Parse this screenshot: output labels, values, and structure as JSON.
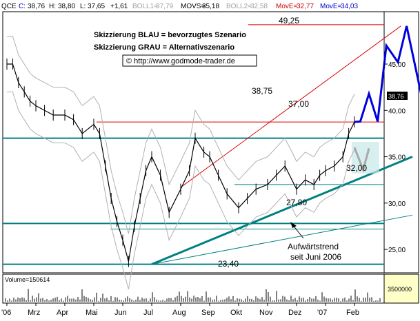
{
  "header": {
    "symbol": "QCE",
    "c": {
      "label": "C:",
      "value": "38,76"
    },
    "h": {
      "label": "H:",
      "value": "38,80"
    },
    "l": {
      "label": "L:",
      "value": "37,65"
    },
    "chg": "+1,61",
    "boll1": {
      "label": "BOLL1=",
      "value": "37,79"
    },
    "movs": {
      "label": "MOVS=",
      "value": "35,18"
    },
    "boll2": {
      "label": "BOLL2=",
      "value": "32,58"
    },
    "movez": {
      "label": "MovE=",
      "value": "32,77"
    },
    "movev": {
      "label": "MovE=",
      "value": "34,03"
    }
  },
  "legend": {
    "line1": "Skizzierung BLAU = bevorzugtes Szenario",
    "line2": "Skizzierung GRAU = Alternativszenario",
    "line3": "© http://www.godmode-trader.de"
  },
  "annotations": {
    "l4925": "49,25",
    "l3875": "38,75",
    "l3700": "37,00",
    "l3200": "32,00",
    "l2780": "27,80",
    "l2340": "23,40",
    "trend1": "Aufwärtstrend",
    "trend2": "seit Juni 2006"
  },
  "price_tag": "38,76",
  "volume_label": "Volume=150614",
  "colors": {
    "price": "#000000",
    "support": "#008080",
    "resistance": "#dd0000",
    "blue": "#0000dd",
    "gray": "#a9a9a9",
    "boll": "#b0b0b0",
    "volume_axis": "#ffffc8"
  },
  "chart_data": {
    "type": "line",
    "title": "",
    "xlabel": "",
    "ylabel": "",
    "x_tick_labels": [
      "'06",
      "Mrz",
      "Apr",
      "Mai",
      "Jun",
      "Jul",
      "Aug",
      "Sep",
      "Okt",
      "Nov",
      "Dez",
      "'07",
      "Feb"
    ],
    "y_tick_labels": [
      "25,00",
      "30,00",
      "35,00",
      "40,00",
      "45,00"
    ],
    "y_ticks": [
      25,
      30,
      35,
      40,
      45
    ],
    "ylim": [
      23.0,
      50.5
    ],
    "volume_tick_label": "3500000",
    "volume_tick": 3500000,
    "horizontal_levels": [
      {
        "label": "49,25",
        "value": 49.25,
        "color": "red"
      },
      {
        "label": "38,75",
        "value": 38.75,
        "color": "red"
      },
      {
        "label": "37,00",
        "value": 37.0,
        "color": "teal"
      },
      {
        "label": "32,00",
        "value": 32.0,
        "color": "teal"
      },
      {
        "label": "27,80",
        "value": 27.8,
        "color": "teal"
      },
      {
        "label": "23,40",
        "value": 23.4,
        "color": "teal"
      }
    ],
    "price_series": {
      "x_months": [
        0.0,
        0.2,
        0.4,
        0.6,
        0.8,
        1.0,
        1.3,
        1.6,
        2.0,
        2.3,
        2.6,
        3.0,
        3.2,
        3.4,
        3.6,
        3.8,
        4.0,
        4.2,
        4.4,
        4.6,
        4.8,
        5.0,
        5.3,
        5.6,
        6.0,
        6.3,
        6.5,
        6.8,
        7.0,
        7.3,
        7.6,
        8.0,
        8.3,
        8.6,
        9.0,
        9.3,
        9.6,
        10.0,
        10.3,
        10.6,
        10.8,
        11.0,
        11.3,
        11.6,
        11.8,
        12.0
      ],
      "values": [
        45.0,
        45.0,
        43.0,
        42.0,
        41.0,
        40.5,
        40.0,
        39.5,
        39.5,
        39.0,
        37.5,
        38.5,
        37.5,
        34.0,
        30.5,
        28.0,
        26.0,
        23.7,
        27.5,
        30.5,
        33.5,
        35.0,
        33.0,
        29.0,
        31.5,
        33.5,
        37.0,
        35.5,
        35.0,
        33.0,
        31.0,
        29.5,
        30.5,
        31.5,
        32.0,
        33.0,
        34.0,
        31.5,
        32.5,
        32.0,
        33.0,
        33.5,
        34.0,
        35.0,
        37.5,
        38.76
      ]
    },
    "scenario_blue": {
      "x_months": [
        12.0,
        12.2,
        12.5,
        12.8,
        13.1,
        13.5,
        13.8,
        14.3
      ],
      "values": [
        38.76,
        38.8,
        41.8,
        38.8,
        47.0,
        45.2,
        49.1,
        41.8
      ]
    },
    "scenario_gray": {
      "x_months": [
        12.0,
        12.3,
        12.5
      ],
      "values": [
        36.0,
        33.6,
        35.9
      ]
    },
    "trendlines": [
      {
        "name": "resistance",
        "points": [
          [
            6.0,
            31.7
          ],
          [
            13.6,
            49.1
          ]
        ]
      },
      {
        "name": "uptrend",
        "points": [
          [
            5.0,
            23.4
          ],
          [
            14.0,
            35.0
          ]
        ]
      },
      {
        "name": "uptrend-2",
        "points": [
          [
            5.0,
            23.4
          ],
          [
            14.0,
            28.7
          ]
        ]
      }
    ]
  }
}
